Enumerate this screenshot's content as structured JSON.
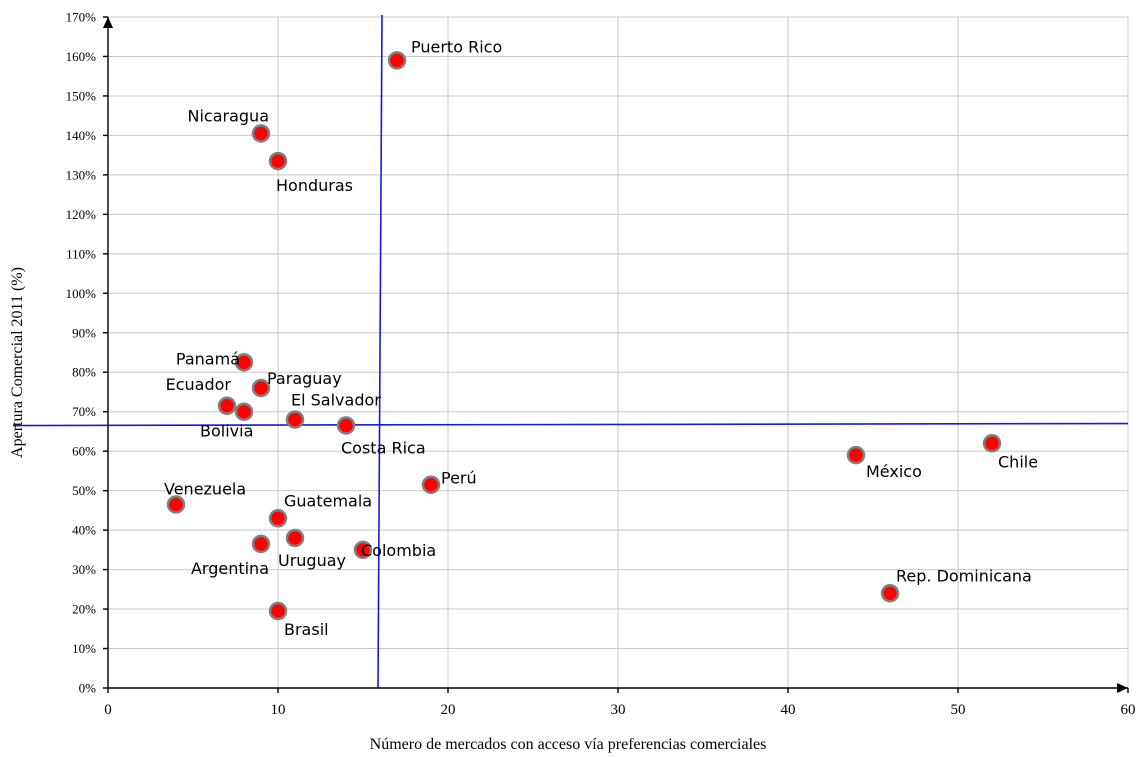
{
  "chart_data": {
    "type": "scatter",
    "xlabel": "Número de mercados con acceso vía preferencias comerciales",
    "ylabel": "Apertura Comercial 2011 (%)",
    "xlim": [
      0,
      60
    ],
    "ylim": [
      0,
      170
    ],
    "x_ticks": [
      0,
      10,
      20,
      30,
      40,
      50,
      60
    ],
    "y_ticks": [
      0,
      10,
      20,
      30,
      40,
      50,
      60,
      70,
      80,
      90,
      100,
      110,
      120,
      130,
      140,
      150,
      160,
      170
    ],
    "y_tick_suffix": "%",
    "grid": true,
    "marker_color": "#ff0000",
    "marker_edge_color": "#808080",
    "reference_line_color": "#1a1ad6",
    "reference_lines": {
      "vertical_x": 16,
      "horizontal_y": 66.5
    },
    "points": [
      {
        "label": "Puerto Rico",
        "x": 17,
        "y": 159,
        "label_pos": "right"
      },
      {
        "label": "Nicaragua",
        "x": 9,
        "y": 140.5,
        "label_pos": "above-left"
      },
      {
        "label": "Honduras",
        "x": 10,
        "y": 133.5,
        "label_pos": "below"
      },
      {
        "label": "Panamá",
        "x": 8,
        "y": 82.5,
        "label_pos": "left"
      },
      {
        "label": "Paraguay",
        "x": 9,
        "y": 76,
        "label_pos": "above-right"
      },
      {
        "label": "Ecuador",
        "x": 7,
        "y": 71.5,
        "label_pos": "above-left"
      },
      {
        "label": "Bolivia",
        "x": 8,
        "y": 70,
        "label_pos": "below"
      },
      {
        "label": "El Salvador",
        "x": 11,
        "y": 68,
        "label_pos": "above-right"
      },
      {
        "label": "Costa Rica",
        "x": 14,
        "y": 66.5,
        "label_pos": "below"
      },
      {
        "label": "Chile",
        "x": 52,
        "y": 62,
        "label_pos": "below-right"
      },
      {
        "label": "México",
        "x": 44,
        "y": 59,
        "label_pos": "below-right"
      },
      {
        "label": "Perú",
        "x": 19,
        "y": 51.5,
        "label_pos": "above-right"
      },
      {
        "label": "Venezuela",
        "x": 4,
        "y": 46.5,
        "label_pos": "above"
      },
      {
        "label": "Guatemala",
        "x": 10,
        "y": 43,
        "label_pos": "above-right"
      },
      {
        "label": "Uruguay",
        "x": 11,
        "y": 38,
        "label_pos": "below"
      },
      {
        "label": "Argentina",
        "x": 9,
        "y": 36.5,
        "label_pos": "below-left"
      },
      {
        "label": "Colombia",
        "x": 15,
        "y": 35,
        "label_pos": "right"
      },
      {
        "label": "Rep. Dominicana",
        "x": 46,
        "y": 24,
        "label_pos": "above-right"
      },
      {
        "label": "Brasil",
        "x": 10,
        "y": 19.5,
        "label_pos": "below-right"
      }
    ]
  }
}
